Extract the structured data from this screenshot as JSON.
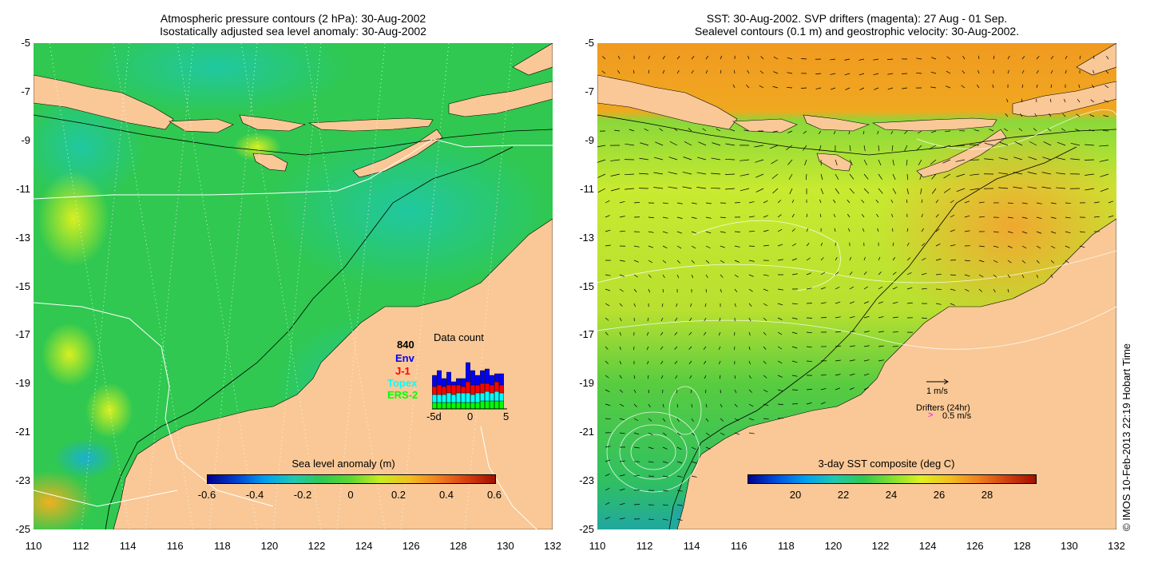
{
  "left_map": {
    "title_line1": "Atmospheric pressure contours (2 hPa): 30-Aug-2002",
    "title_line2": "Isostatically adjusted sea level anomaly: 30-Aug-2002",
    "colorbar": {
      "label": "Sea level anomaly (m)",
      "min": -0.6,
      "max": 0.6,
      "ticks": [
        "-0.6",
        "-0.4",
        "-0.2",
        "0",
        "0.2",
        "0.4",
        "0.6"
      ]
    },
    "data_count": {
      "title": "Data count",
      "total": "840",
      "labels": [
        "Env",
        "J-1",
        "Topex",
        "ERS-2"
      ],
      "colors": [
        "#0000ff",
        "#ff0000",
        "#00ffff",
        "#00ff00"
      ],
      "x_ticks": [
        "-5d",
        "0",
        "5"
      ],
      "bars": [
        [
          14,
          10,
          10,
          8
        ],
        [
          18,
          12,
          10,
          8
        ],
        [
          10,
          10,
          10,
          8
        ],
        [
          16,
          10,
          12,
          8
        ],
        [
          4,
          12,
          10,
          8
        ],
        [
          8,
          10,
          12,
          8
        ],
        [
          10,
          8,
          12,
          8
        ],
        [
          24,
          14,
          12,
          8
        ],
        [
          18,
          12,
          10,
          8
        ],
        [
          12,
          10,
          12,
          8
        ],
        [
          16,
          12,
          10,
          10
        ],
        [
          18,
          10,
          12,
          10
        ],
        [
          12,
          10,
          10,
          10
        ],
        [
          10,
          12,
          12,
          10
        ],
        [
          14,
          10,
          10,
          10
        ]
      ]
    }
  },
  "right_map": {
    "title_line1": "SST: 30-Aug-2002. SVP drifters (magenta): 27 Aug - 01 Sep.",
    "title_line2": "Sealevel contours (0.1 m) and geostrophic velocity: 30-Aug-2002.",
    "colorbar": {
      "label": "3-day SST composite (deg C)",
      "min": 18,
      "max": 30,
      "ticks": [
        "20",
        "22",
        "24",
        "26",
        "28"
      ]
    },
    "legend": {
      "vector_label": "1 m/s",
      "drifters_label": "Drifters (24hr)",
      "drifter_speed": "0.5 m/s",
      "drifter_symbol": ">"
    }
  },
  "axes": {
    "lat_ticks": [
      "-5",
      "-7",
      "-9",
      "-11",
      "-13",
      "-15",
      "-17",
      "-19",
      "-21",
      "-23",
      "-25"
    ],
    "lon_ticks": [
      "110",
      "112",
      "114",
      "116",
      "118",
      "120",
      "122",
      "124",
      "126",
      "128",
      "130",
      "132"
    ]
  },
  "credit": "© IMOS 10-Feb-2013 22:19 Hobart Time",
  "colors": {
    "land": "#f9c896",
    "ocean_green": "#3ccc3c",
    "sst_yellow": "#d4ec2a",
    "sst_orange": "#f0a020"
  }
}
